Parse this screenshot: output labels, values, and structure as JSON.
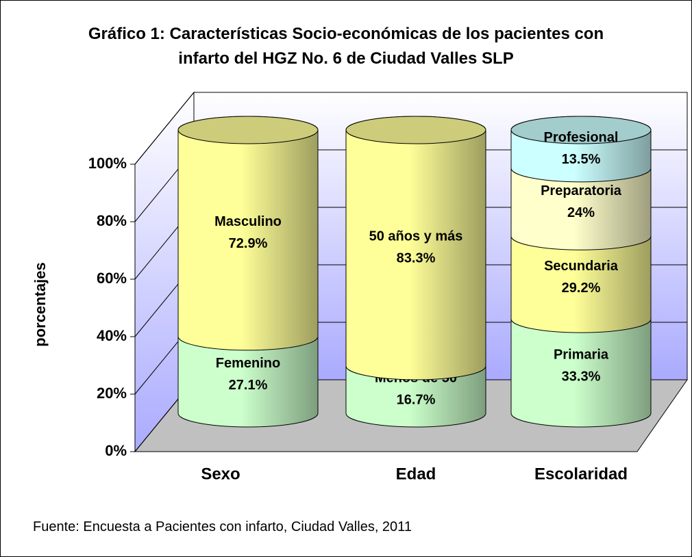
{
  "chart_data": {
    "type": "stacked-cylinder",
    "title": "Gráfico 1: Características Socio-económicas de los pacientes con infarto del HGZ No. 6 de Ciudad Valles SLP",
    "y_label": "porcentajes",
    "source": "Fuente: Encuesta a Pacientes con infarto, Ciudad Valles, 2011",
    "ylim": [
      0,
      100
    ],
    "yticks": [
      {
        "value": 0,
        "label": "0%"
      },
      {
        "value": 20,
        "label": "20%"
      },
      {
        "value": 40,
        "label": "40%"
      },
      {
        "value": 60,
        "label": "60%"
      },
      {
        "value": 80,
        "label": "80%"
      },
      {
        "value": 100,
        "label": "100%"
      }
    ],
    "grid": true,
    "stacks": [
      {
        "category": "Sexo",
        "segments": [
          {
            "name": "Femenino",
            "value": 27.1,
            "value_label": "27.1%",
            "color": "#ccffcc"
          },
          {
            "name": "Masculino",
            "value": 72.9,
            "value_label": "72.9%",
            "color": "#ffff99"
          }
        ]
      },
      {
        "category": "Edad",
        "segments": [
          {
            "name": "Menos de 50",
            "value": 16.7,
            "value_label": "16.7%",
            "color": "#ccffcc"
          },
          {
            "name": "50 años y más",
            "value": 83.3,
            "value_label": "83.3%",
            "color": "#ffff99"
          }
        ]
      },
      {
        "category": "Escolaridad",
        "segments": [
          {
            "name": "Primaria",
            "value": 33.3,
            "value_label": "33.3%",
            "color": "#ccffcc"
          },
          {
            "name": "Secundaria",
            "value": 29.2,
            "value_label": "29.2%",
            "color": "#ffff99"
          },
          {
            "name": "Preparatoria",
            "value": 24,
            "value_label": "24%",
            "color": "#ffffcc"
          },
          {
            "name": "Profesional",
            "value": 13.5,
            "value_label": "13.5%",
            "color": "#ccffff"
          }
        ]
      }
    ]
  }
}
